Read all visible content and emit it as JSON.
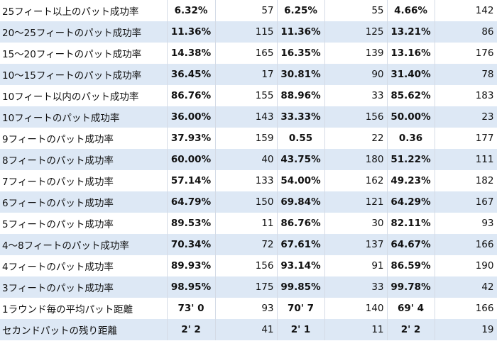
{
  "table": {
    "rows": [
      [
        "25フィート以上のパット成功率",
        "6.32%",
        57,
        "6.25%",
        55,
        "4.66%",
        142
      ],
      [
        "20～25フィートのパット成功率",
        "11.36%",
        115,
        "11.36%",
        125,
        "13.21%",
        86
      ],
      [
        "15～20フィートのパット成功率",
        "14.38%",
        165,
        "16.35%",
        139,
        "13.16%",
        176
      ],
      [
        "10～15フィートのパット成功率",
        "36.45%",
        17,
        "30.81%",
        90,
        "31.40%",
        78
      ],
      [
        "10フィート以内のパット成功率",
        "86.76%",
        155,
        "88.96%",
        33,
        "85.62%",
        183
      ],
      [
        "10フィートのパット成功率",
        "36.00%",
        143,
        "33.33%",
        156,
        "50.00%",
        23
      ],
      [
        "9フィートのパット成功率",
        "37.93%",
        159,
        "0.55",
        22,
        "0.36",
        177
      ],
      [
        "8フィートのパット成功率",
        "60.00%",
        40,
        "43.75%",
        180,
        "51.22%",
        111
      ],
      [
        "7フィートのパット成功率",
        "57.14%",
        133,
        "54.00%",
        162,
        "49.23%",
        182
      ],
      [
        "6フィートのパット成功率",
        "64.79%",
        150,
        "69.84%",
        121,
        "64.29%",
        167
      ],
      [
        "5フィートのパット成功率",
        "89.53%",
        11,
        "86.76%",
        30,
        "82.11%",
        93
      ],
      [
        "4～8フィートのパット成功率",
        "70.34%",
        72,
        "67.61%",
        137,
        "64.67%",
        166
      ],
      [
        "4フィートのパット成功率",
        "89.93%",
        156,
        "93.14%",
        91,
        "86.59%",
        190
      ],
      [
        "3フィートのパット成功率",
        "98.95%",
        175,
        "99.85%",
        33,
        "99.78%",
        42
      ],
      [
        "1ラウンド毎の平均パット距離",
        "73' 0",
        93,
        "70' 7",
        140,
        "69' 4",
        166
      ],
      [
        "セカンドパットの残り距離",
        "2' 2",
        41,
        "2' 1",
        11,
        "2' 2",
        19
      ]
    ]
  }
}
